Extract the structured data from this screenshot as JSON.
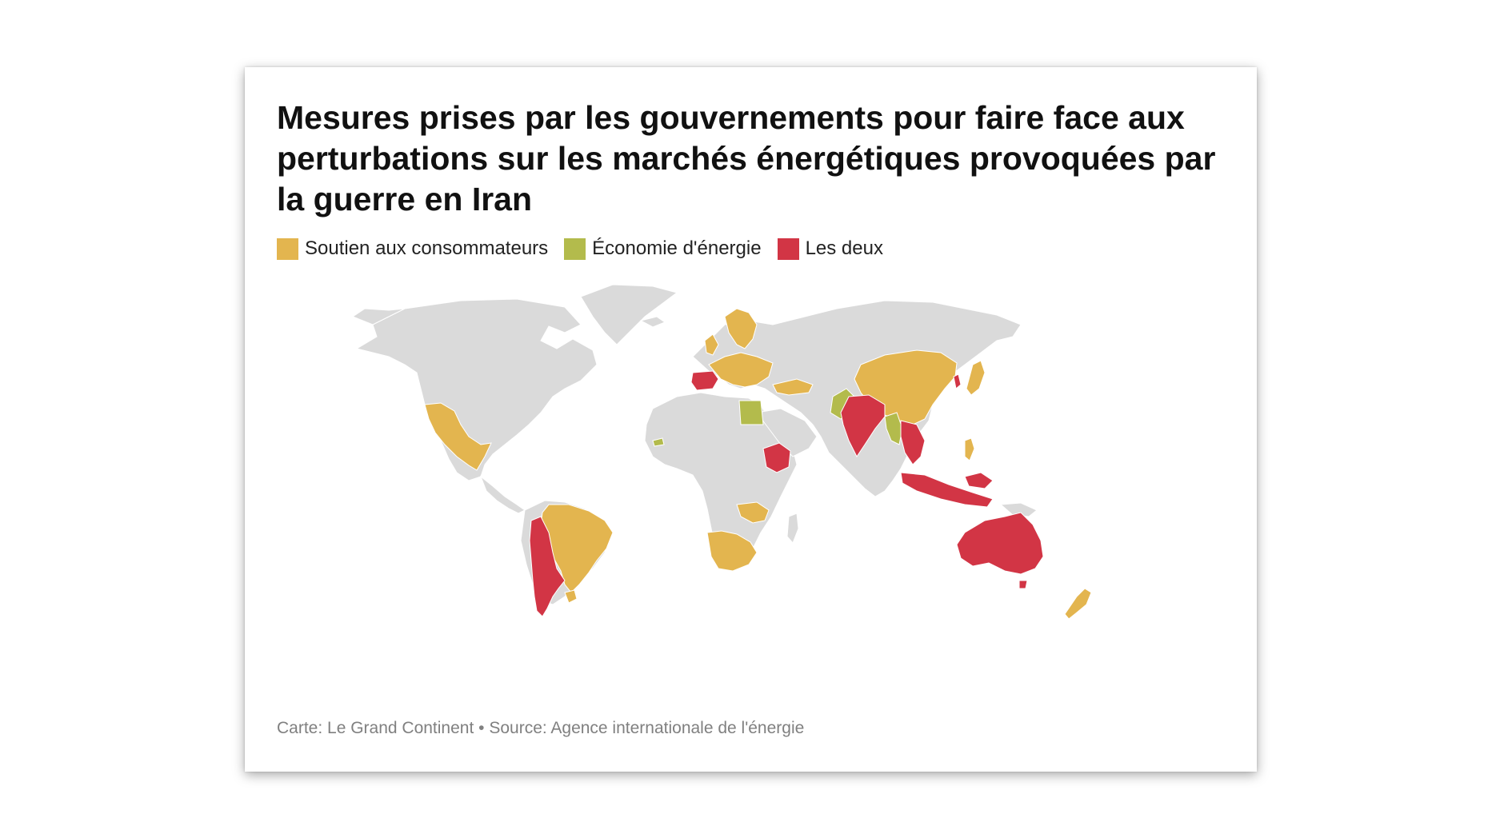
{
  "title": "Mesures prises par les gouvernements pour faire face aux perturbations sur les marchés énergétiques provoquées par la guerre en Iran",
  "legend": [
    {
      "label": "Soutien aux consommateurs",
      "color": "#e3b54f"
    },
    {
      "label": "Économie d'énergie",
      "color": "#b3bb4c"
    },
    {
      "label": "Les deux",
      "color": "#d23545"
    }
  ],
  "base_color": "#dadada",
  "source": "Carte: Le Grand Continent • Source: Agence internationale de l'énergie"
}
